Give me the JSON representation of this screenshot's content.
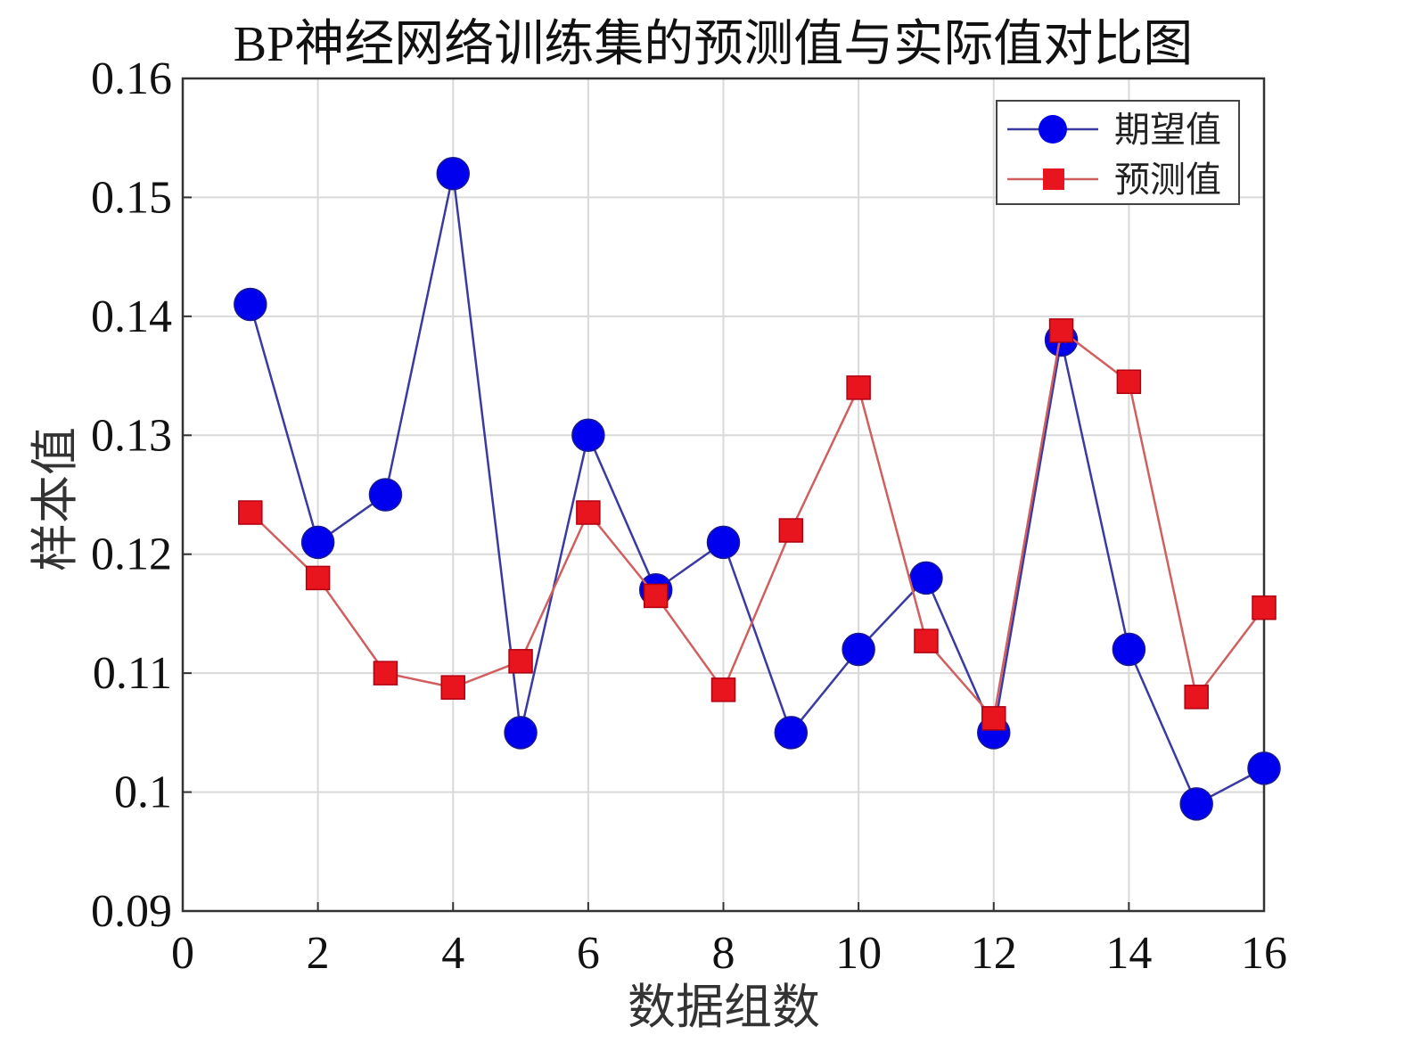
{
  "chart_data": {
    "type": "line",
    "title": "BP神经网络训练集的预测值与实际值对比图",
    "xlabel": "数据组数",
    "ylabel": "样本值",
    "xlim": [
      0,
      16
    ],
    "ylim": [
      0.09,
      0.16
    ],
    "xticks": [
      0,
      2,
      4,
      6,
      8,
      10,
      12,
      14,
      16
    ],
    "xtick_labels": [
      "0",
      "2",
      "4",
      "6",
      "8",
      "10",
      "12",
      "14",
      "16"
    ],
    "yticks": [
      0.09,
      0.1,
      0.11,
      0.12,
      0.13,
      0.14,
      0.15,
      0.16
    ],
    "ytick_labels": [
      "0.09",
      "0.1",
      "0.11",
      "0.12",
      "0.13",
      "0.14",
      "0.15",
      "0.16"
    ],
    "grid": true,
    "legend_position": "top-right",
    "x": [
      1,
      2,
      3,
      4,
      5,
      6,
      7,
      8,
      9,
      10,
      11,
      12,
      13,
      14,
      15,
      16
    ],
    "series": [
      {
        "name": "期望值",
        "marker": "circle",
        "color": "#0000ee",
        "line_color": "#3a3aa0",
        "values": [
          0.141,
          0.121,
          0.125,
          0.152,
          0.105,
          0.13,
          0.117,
          0.121,
          0.105,
          0.112,
          0.118,
          0.105,
          0.138,
          0.112,
          0.099,
          0.102
        ]
      },
      {
        "name": "预测值",
        "marker": "square",
        "color": "#e8141e",
        "line_color": "#d06060",
        "values": [
          0.1235,
          0.118,
          0.11,
          0.1088,
          0.111,
          0.1235,
          0.1165,
          0.1086,
          0.122,
          0.134,
          0.1127,
          0.1062,
          0.1388,
          0.1345,
          0.108,
          0.1155
        ]
      }
    ]
  }
}
